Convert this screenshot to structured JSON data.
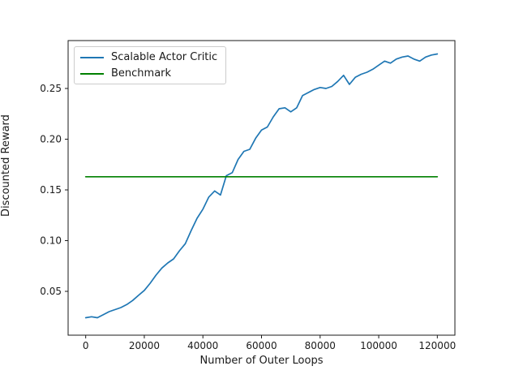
{
  "figure": {
    "background": "#ffffff",
    "border_color": "#1a1a1a"
  },
  "chart_data": {
    "type": "line",
    "title": "",
    "xlabel": "Number of Outer Loops",
    "ylabel": "Discounted Reward",
    "xlim": [
      -6000,
      126000
    ],
    "ylim": [
      0.0068,
      0.2972
    ],
    "grid": false,
    "xticks": {
      "values": [
        0,
        20000,
        40000,
        60000,
        80000,
        100000,
        120000
      ],
      "labels": [
        "0",
        "20000",
        "40000",
        "60000",
        "80000",
        "100000",
        "120000"
      ]
    },
    "yticks": {
      "values": [
        0.05,
        0.1,
        0.15,
        0.2,
        0.25
      ],
      "labels": [
        "0.05",
        "0.10",
        "0.15",
        "0.20",
        "0.25"
      ]
    },
    "legend": {
      "position": "upper-left",
      "entries": [
        {
          "label": "Scalable Actor Critic",
          "color": "#1f77b4"
        },
        {
          "label": "Benchmark",
          "color": "#008000"
        }
      ]
    },
    "series": [
      {
        "name": "Scalable Actor Critic",
        "color": "#1f77b4",
        "x": [
          0,
          2000,
          4000,
          6000,
          8000,
          10000,
          12000,
          14000,
          16000,
          18000,
          20000,
          22000,
          24000,
          26000,
          28000,
          30000,
          32000,
          34000,
          36000,
          38000,
          40000,
          42000,
          44000,
          46000,
          48000,
          50000,
          52000,
          54000,
          56000,
          58000,
          60000,
          62000,
          64000,
          66000,
          68000,
          70000,
          72000,
          74000,
          76000,
          78000,
          80000,
          82000,
          84000,
          86000,
          88000,
          90000,
          92000,
          94000,
          96000,
          98000,
          100000,
          102000,
          104000,
          106000,
          108000,
          110000,
          112000,
          114000,
          116000,
          118000,
          120000
        ],
        "y": [
          0.024,
          0.025,
          0.024,
          0.027,
          0.03,
          0.032,
          0.034,
          0.037,
          0.041,
          0.046,
          0.051,
          0.058,
          0.066,
          0.073,
          0.078,
          0.082,
          0.09,
          0.097,
          0.11,
          0.122,
          0.131,
          0.143,
          0.149,
          0.145,
          0.164,
          0.167,
          0.18,
          0.188,
          0.19,
          0.201,
          0.209,
          0.212,
          0.222,
          0.23,
          0.231,
          0.227,
          0.231,
          0.243,
          0.246,
          0.249,
          0.251,
          0.25,
          0.252,
          0.257,
          0.263,
          0.254,
          0.261,
          0.264,
          0.266,
          0.269,
          0.273,
          0.277,
          0.275,
          0.279,
          0.281,
          0.282,
          0.279,
          0.277,
          0.281,
          0.283,
          0.284
        ]
      },
      {
        "name": "Benchmark",
        "color": "#008000",
        "x": [
          0,
          120000
        ],
        "y": [
          0.163,
          0.163
        ]
      }
    ]
  }
}
